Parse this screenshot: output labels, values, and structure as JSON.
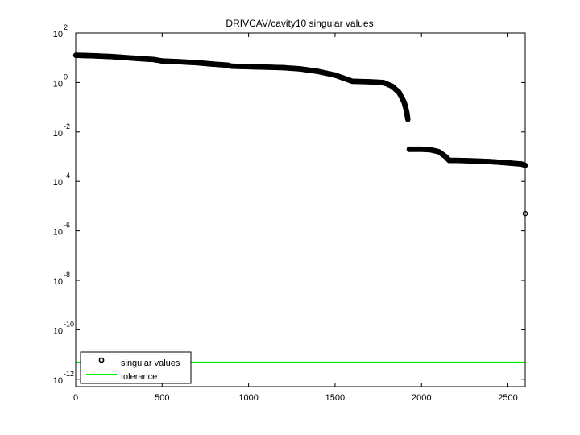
{
  "chart_data": {
    "type": "scatter",
    "title": "DRIVCAV/cavity10 singular values",
    "xlabel": "",
    "ylabel": "",
    "xlim": [
      0,
      2600
    ],
    "ylim_exp": [
      -12.3,
      2
    ],
    "yscale": "log",
    "x_ticks": [
      "0",
      "500",
      "1000",
      "1500",
      "2000",
      "2500"
    ],
    "x_tick_values": [
      0,
      500,
      1000,
      1500,
      2000,
      2500
    ],
    "y_ticks": [
      {
        "base": "10",
        "exp": "2",
        "value": 2
      },
      {
        "base": "10",
        "exp": "0",
        "value": 0
      },
      {
        "base": "10",
        "exp": "-2",
        "value": -2
      },
      {
        "base": "10",
        "exp": "-4",
        "value": -4
      },
      {
        "base": "10",
        "exp": "-6",
        "value": -6
      },
      {
        "base": "10",
        "exp": "-8",
        "value": -8
      },
      {
        "base": "10",
        "exp": "-10",
        "value": -10
      },
      {
        "base": "10",
        "exp": "-12",
        "value": -12
      }
    ],
    "series": [
      {
        "name": "singular values",
        "marker": "circle",
        "color": "#000000",
        "points_log10": [
          [
            1,
            1.1
          ],
          [
            100,
            1.08
          ],
          [
            200,
            1.05
          ],
          [
            300,
            1.0
          ],
          [
            400,
            0.95
          ],
          [
            450,
            0.93
          ],
          [
            500,
            0.87
          ],
          [
            600,
            0.84
          ],
          [
            700,
            0.8
          ],
          [
            800,
            0.74
          ],
          [
            880,
            0.7
          ],
          [
            900,
            0.66
          ],
          [
            1000,
            0.64
          ],
          [
            1100,
            0.62
          ],
          [
            1200,
            0.6
          ],
          [
            1300,
            0.55
          ],
          [
            1400,
            0.45
          ],
          [
            1500,
            0.3
          ],
          [
            1600,
            0.05
          ],
          [
            1700,
            0.03
          ],
          [
            1780,
            0.0
          ],
          [
            1830,
            -0.15
          ],
          [
            1870,
            -0.4
          ],
          [
            1900,
            -0.8
          ],
          [
            1915,
            -1.2
          ],
          [
            1921,
            -1.5
          ],
          [
            1930,
            -2.7
          ],
          [
            2000,
            -2.7
          ],
          [
            2050,
            -2.72
          ],
          [
            2100,
            -2.8
          ],
          [
            2140,
            -3.0
          ],
          [
            2160,
            -3.15
          ],
          [
            2200,
            -3.15
          ],
          [
            2300,
            -3.17
          ],
          [
            2400,
            -3.2
          ],
          [
            2500,
            -3.25
          ],
          [
            2580,
            -3.3
          ],
          [
            2600,
            -3.35
          ],
          [
            2600,
            -5.3
          ]
        ]
      },
      {
        "name": "tolerance",
        "type": "line",
        "color": "#00ee00",
        "value_log10": -11.32
      }
    ],
    "legend": {
      "position": "lower-left",
      "entries": [
        "singular values",
        "tolerance"
      ]
    },
    "grid": false
  }
}
